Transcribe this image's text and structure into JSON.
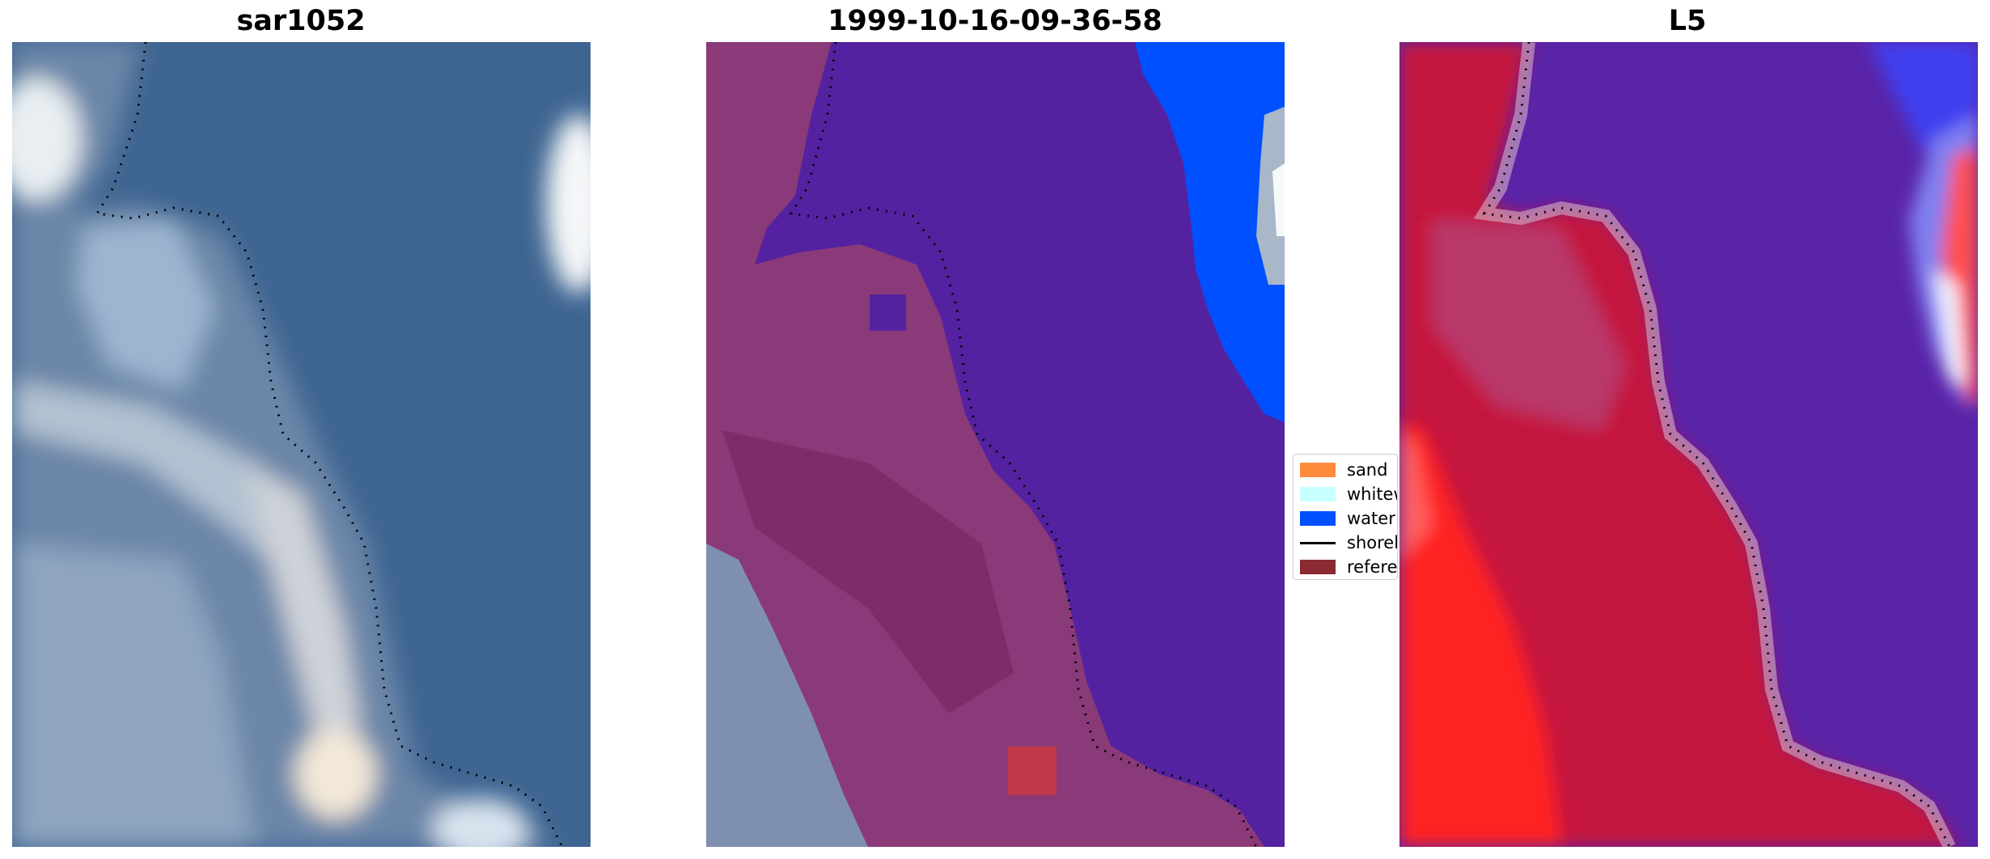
{
  "panels": [
    {
      "title": "sar1052"
    },
    {
      "title": "1999-10-16-09-36-58"
    },
    {
      "title": "L5"
    }
  ],
  "legend": {
    "items": [
      {
        "label": "sand",
        "color": "#ff8c3c",
        "type": "patch"
      },
      {
        "label": "whitewater",
        "color": "#c8ffff",
        "type": "patch"
      },
      {
        "label": "water",
        "color": "#0050ff",
        "type": "patch"
      },
      {
        "label": "shoreline",
        "color": "#000000",
        "type": "line"
      },
      {
        "label": "reference",
        "color": "#8b2a32",
        "type": "patch"
      }
    ]
  },
  "colors": {
    "satellite_water": "#3e6591",
    "classified_water": "#5422a0",
    "classified_land": "#8a3a78",
    "ndwi_land": "#c4143c",
    "ndwi_water": "#5a24a8"
  }
}
